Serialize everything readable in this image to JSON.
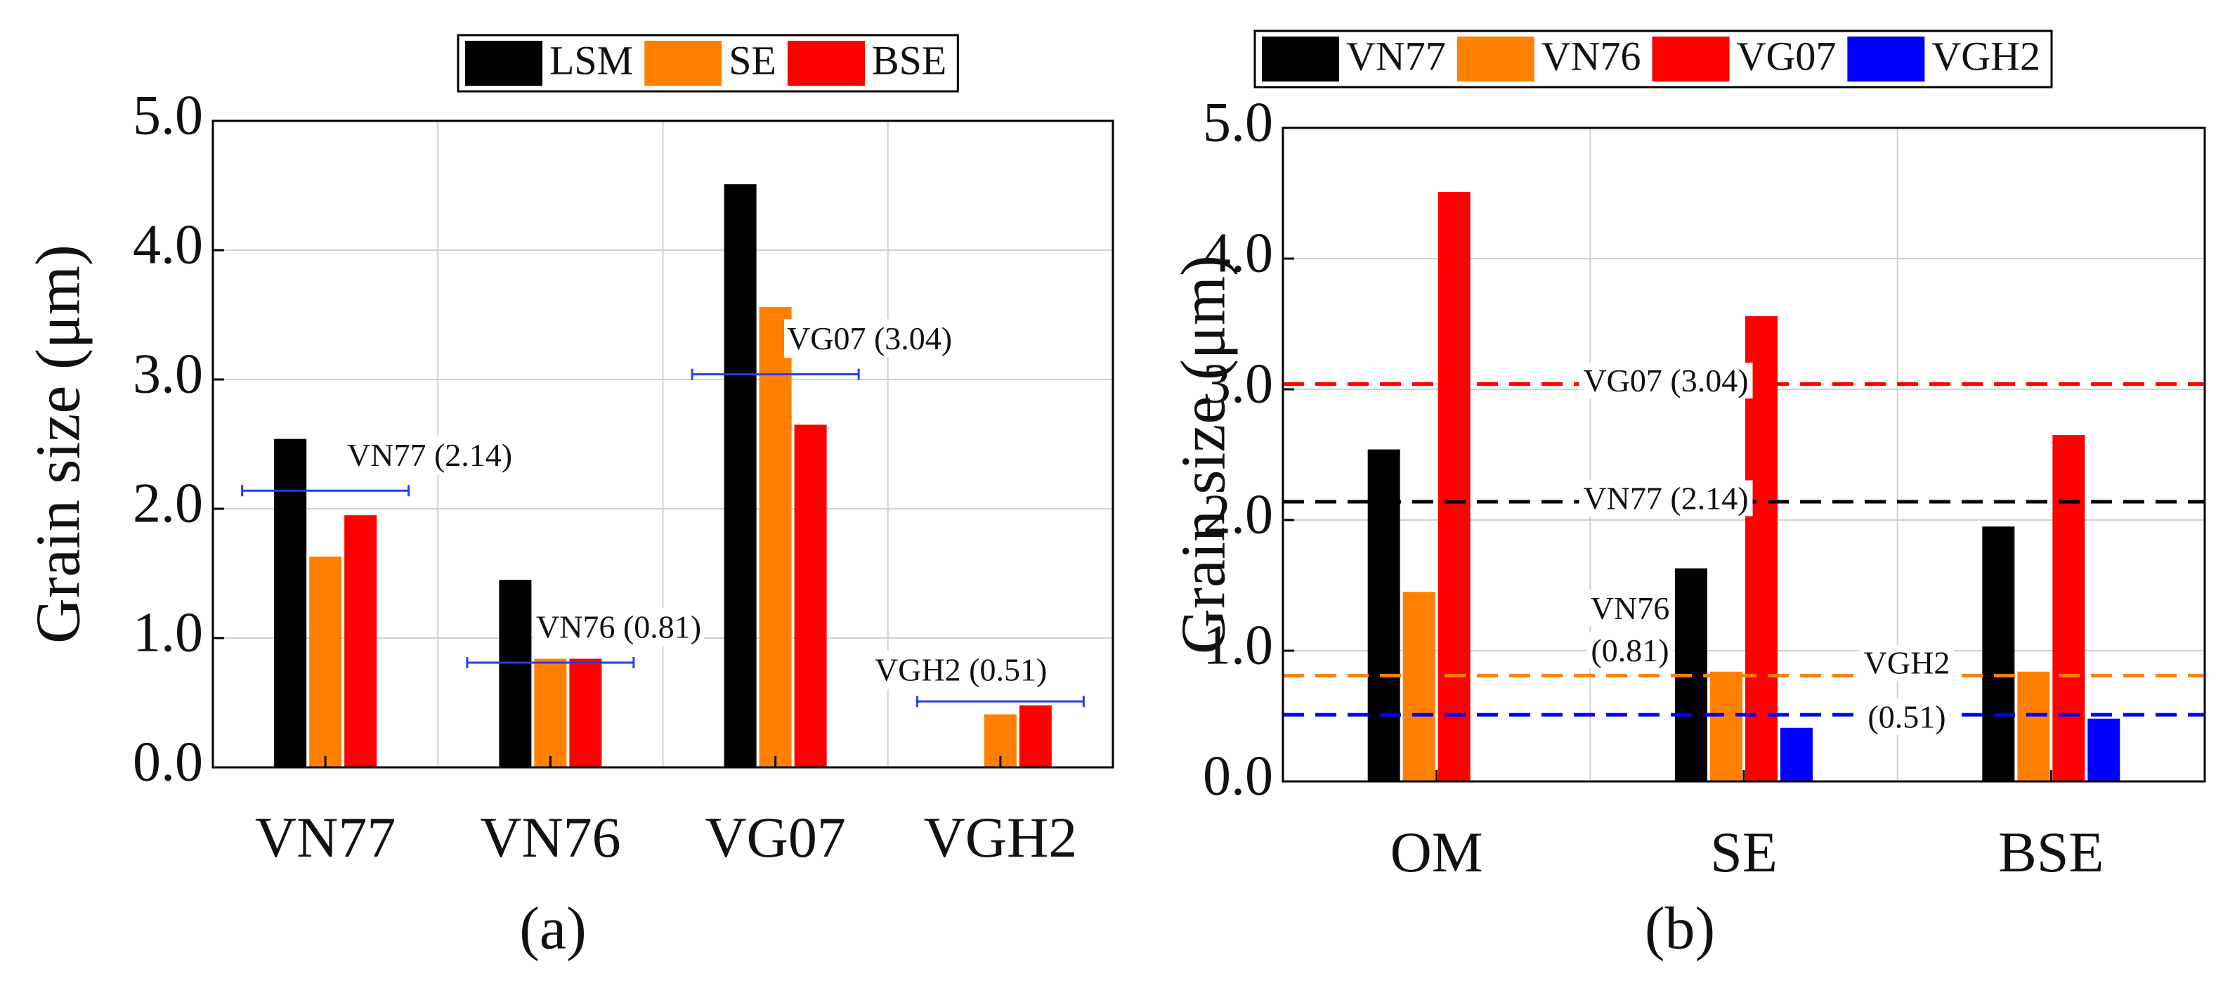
{
  "chart_data": [
    {
      "type": "bar",
      "caption": "(a)",
      "y_label": "Grain size (μm)",
      "categories": [
        "VN77",
        "VN76",
        "VG07",
        "VGH2"
      ],
      "series": [
        {
          "name": "LSM",
          "color": "#000000",
          "values": [
            2.54,
            1.45,
            4.51,
            null
          ]
        },
        {
          "name": "SE",
          "color": "#ff8000",
          "values": [
            1.63,
            0.84,
            3.56,
            0.41
          ]
        },
        {
          "name": "BSE",
          "color": "#ff0000",
          "values": [
            1.95,
            0.84,
            2.65,
            0.48
          ]
        }
      ],
      "ylim": [
        0,
        5
      ],
      "yticks": [
        {
          "value": 0,
          "label": "0.0"
        },
        {
          "value": 1,
          "label": "1.0"
        },
        {
          "value": 2,
          "label": "2.0"
        },
        {
          "value": 3,
          "label": "3.0"
        },
        {
          "value": 4,
          "label": "4.0"
        },
        {
          "value": 5,
          "label": "5.0"
        }
      ],
      "grid": true,
      "reference_style": "segment",
      "reference_lines": [
        {
          "label": "VN77 (2.14)",
          "value": 2.14,
          "color": "#1f3fff"
        },
        {
          "label": "VN76 (0.81)",
          "value": 0.81,
          "color": "#1f3fff"
        },
        {
          "label": "VG07 (3.04)",
          "value": 3.04,
          "color": "#1f3fff"
        },
        {
          "label": "VGH2 (0.51)",
          "value": 0.51,
          "color": "#1f3fff"
        }
      ]
    },
    {
      "type": "bar",
      "caption": "(b)",
      "y_label": "Grain size (μm)",
      "categories": [
        "OM",
        "SE",
        "BSE"
      ],
      "series": [
        {
          "name": "VN77",
          "color": "#000000",
          "values": [
            2.54,
            1.63,
            1.95
          ]
        },
        {
          "name": "VN76",
          "color": "#ff8000",
          "values": [
            1.45,
            0.84,
            0.84
          ]
        },
        {
          "name": "VG07",
          "color": "#ff0000",
          "values": [
            4.51,
            3.56,
            2.65
          ]
        },
        {
          "name": "VGH2",
          "color": "#0000ff",
          "values": [
            null,
            0.41,
            0.48
          ]
        }
      ],
      "ylim": [
        0,
        5
      ],
      "yticks": [
        {
          "value": 0,
          "label": "0.0"
        },
        {
          "value": 1,
          "label": "1.0"
        },
        {
          "value": 2,
          "label": "2.0"
        },
        {
          "value": 3,
          "label": "3.0"
        },
        {
          "value": 4,
          "label": "4.0"
        },
        {
          "value": 5,
          "label": "5.0"
        }
      ],
      "grid": true,
      "reference_style": "dashed",
      "reference_lines": [
        {
          "label": "VG07 (3.04)",
          "value": 3.04,
          "color": "#ff0000"
        },
        {
          "label": "VN77 (2.14)",
          "value": 2.14,
          "color": "#000000"
        },
        {
          "label": [
            "VN76",
            "(0.81)"
          ],
          "value": 0.81,
          "color": "#ff8000"
        },
        {
          "label": [
            "VGH2",
            "(0.51)"
          ],
          "value": 0.51,
          "color": "#0000ff"
        }
      ]
    }
  ]
}
